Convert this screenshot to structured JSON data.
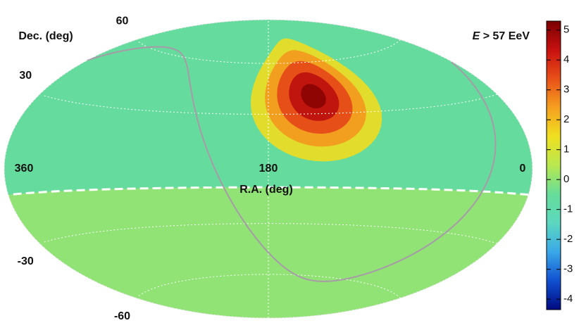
{
  "chart_data": {
    "type": "skymap",
    "title": {
      "symbol": "E",
      "text": "> 57 EeV"
    },
    "xlabel": "R.A. (deg)",
    "ylabel": "Dec. (deg)",
    "xticks": [
      360,
      180,
      0
    ],
    "yticks": [
      60,
      30,
      -30,
      -60
    ],
    "grid": true,
    "field": {
      "north_value": -0.6,
      "south_value": 0,
      "boundary_dec": -10
    },
    "hotspot": {
      "ra": 146,
      "dec": 40,
      "values": [
        1.5,
        2.5,
        3.5,
        4.5,
        5.1
      ],
      "radius": [
        36,
        28,
        21,
        14,
        7
      ]
    },
    "colorbar": {
      "lim": [
        -4.35,
        5.3
      ],
      "ticks": [
        5,
        4,
        3,
        2,
        1,
        0,
        -1,
        -2,
        -3,
        -4
      ],
      "colors": [
        "#000a80",
        "#1050d0",
        "#3aa8e8",
        "#5cd8c0",
        "#66dd99",
        "#b8e850",
        "#f0e020",
        "#f5a020",
        "#e85018",
        "#c81010",
        "#7a0000"
      ]
    }
  }
}
